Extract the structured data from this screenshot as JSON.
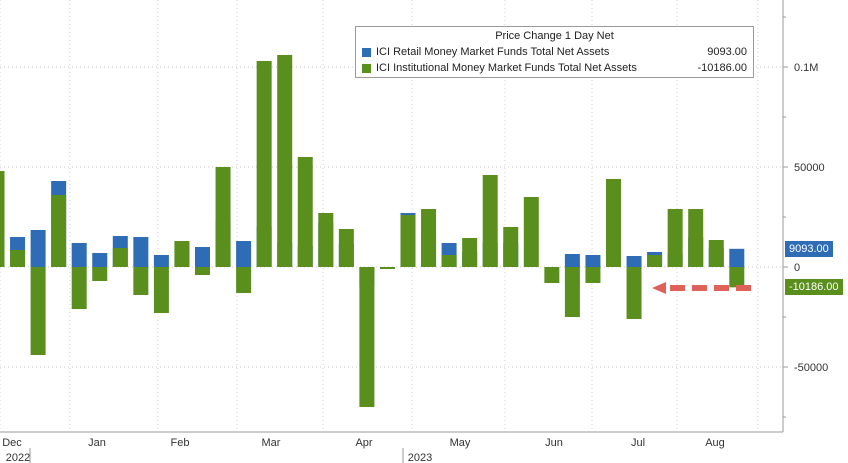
{
  "chart_data": {
    "type": "bar",
    "title": "",
    "xlabel": "",
    "ylabel": "",
    "ylim": [
      -84000,
      130000
    ],
    "y_tick_values": [
      -50000,
      0,
      50000,
      100000
    ],
    "y_tick_labels": [
      "-50000",
      "0",
      "50000",
      "0.1M"
    ],
    "x_month_labels": [
      "Dec",
      "Jan",
      "Feb",
      "Mar",
      "Apr",
      "May",
      "Jun",
      "Jul",
      "Aug"
    ],
    "x_year_labels": [
      "2022",
      "2023"
    ],
    "legend": {
      "title": "Price Change 1 Day Net",
      "placement": "top-right"
    },
    "series": [
      {
        "name": "ICI Retail Money Market Funds Total Net Assets",
        "color": "#2e6db6",
        "last_value_label": "9093.00",
        "values": [
          0,
          15000,
          18500,
          43000,
          12000,
          7000,
          15500,
          15000,
          6000,
          12000,
          10000,
          23000,
          13000,
          20000,
          12000,
          10500,
          22000,
          11500,
          -10000,
          -1000,
          27000,
          18000,
          12000,
          7500,
          12000,
          12000,
          0,
          0,
          6500,
          6000,
          17000,
          5500,
          7500,
          6500,
          15000,
          9500,
          9093
        ]
      },
      {
        "name": "ICI Institutional Money Market Funds Total Net Assets",
        "color": "#5a8f1e",
        "last_value_label": "-10186.00",
        "values": [
          48000,
          8500,
          -44000,
          36000,
          -21000,
          -7000,
          9500,
          -14000,
          -23000,
          13000,
          -4000,
          50000,
          -13000,
          103000,
          106000,
          55000,
          27000,
          19000,
          -70000,
          -1000,
          26000,
          29000,
          6000,
          14500,
          46000,
          20000,
          35000,
          -8000,
          -25000,
          -8000,
          44000,
          -26000,
          6000,
          29000,
          29000,
          13500,
          -10186
        ]
      }
    ]
  }
}
